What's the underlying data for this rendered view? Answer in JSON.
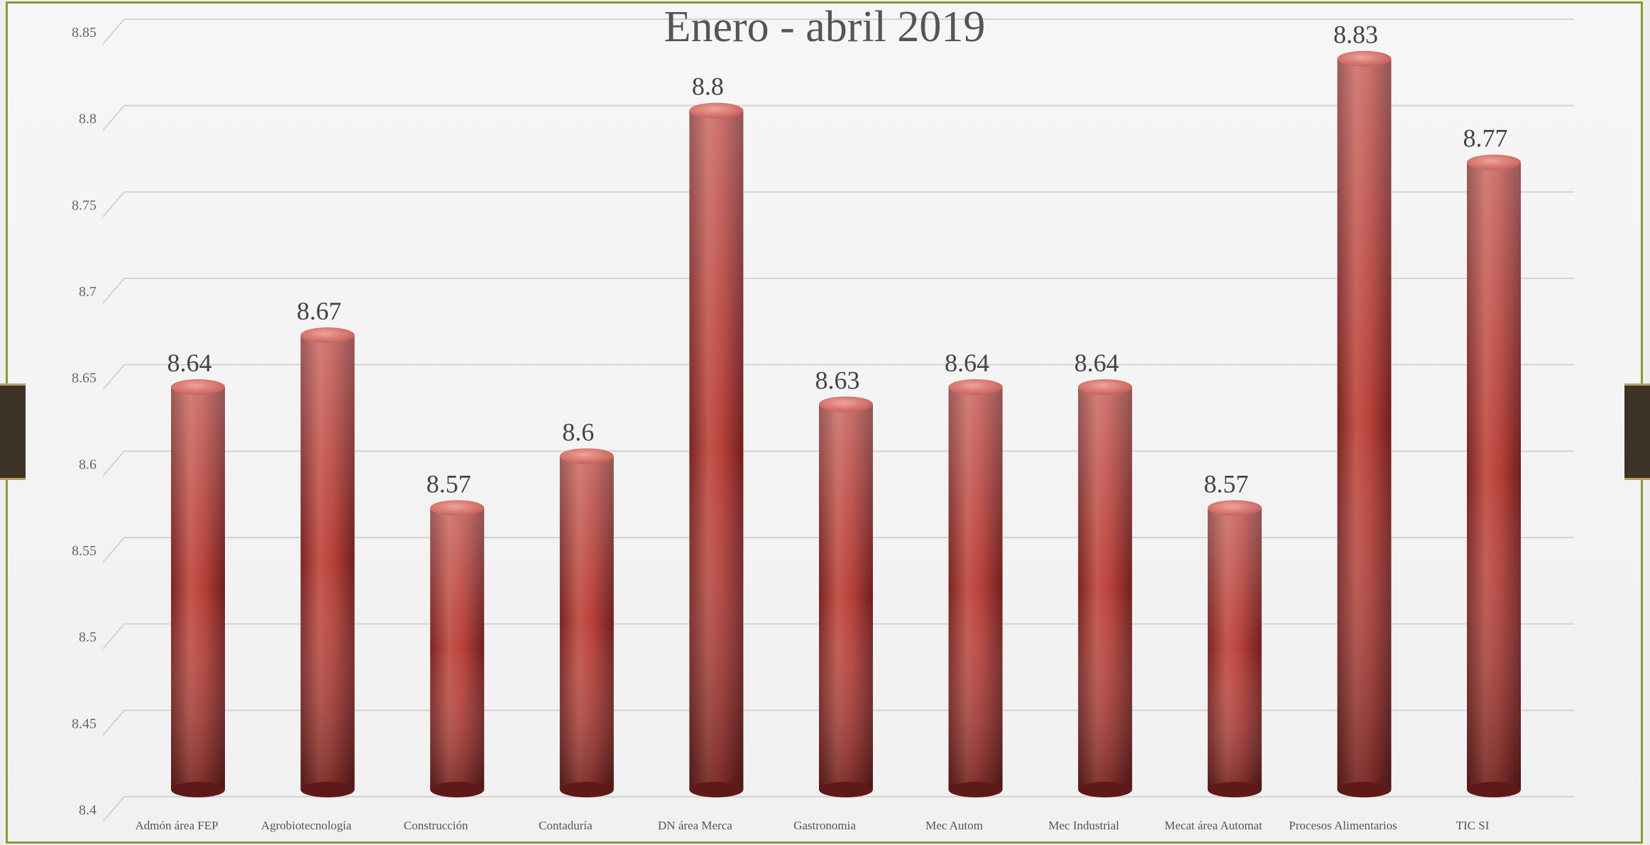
{
  "chart_data": {
    "type": "bar",
    "title": "Enero - abril 2019",
    "categories": [
      "Admón área FEP",
      "Agrobiotecnología",
      "Construcción",
      "Contaduría",
      "DN área Merca",
      "Gastronomia",
      "Mec Autom",
      "Mec Industrial",
      "Mecat área Automat",
      "Procesos Alimentarios",
      "TIC SI"
    ],
    "values": [
      8.64,
      8.67,
      8.57,
      8.6,
      8.8,
      8.63,
      8.64,
      8.64,
      8.57,
      8.83,
      8.77
    ],
    "data_labels": [
      "8.64",
      "8.67",
      "8.57",
      "8.6",
      "8.8",
      "8.63",
      "8.64",
      "8.64",
      "8.57",
      "8.83",
      "8.77"
    ],
    "ylim": [
      8.4,
      8.85
    ],
    "yticks": [
      "8.4",
      "8.45",
      "8.5",
      "8.55",
      "8.6",
      "8.65",
      "8.7",
      "8.75",
      "8.8",
      "8.85"
    ],
    "xlabel": "",
    "ylabel": "",
    "grid": true,
    "legend": "none",
    "colors": {
      "bar_light": "#d97a70",
      "bar_mid": "#b8403a",
      "bar_dark": "#6e1f1e",
      "frame": "#8a9a35"
    }
  }
}
